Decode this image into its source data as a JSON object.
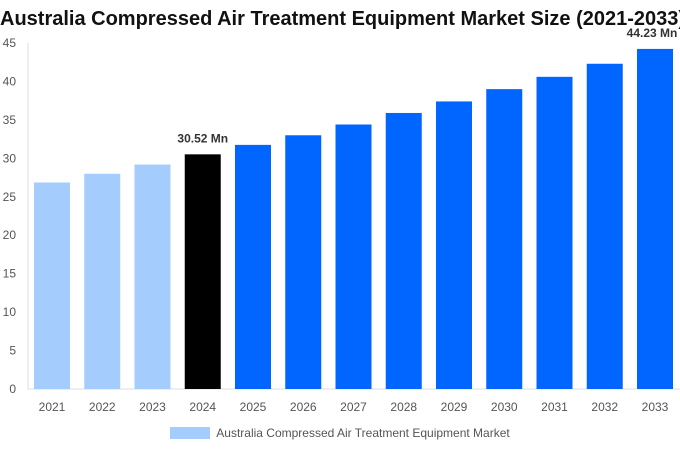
{
  "chart_data": {
    "type": "bar",
    "title": "Australia Compressed Air Treatment Equipment Market Size (2021-2033)",
    "categories": [
      "2021",
      "2022",
      "2023",
      "2024",
      "2025",
      "2026",
      "2027",
      "2028",
      "2029",
      "2030",
      "2031",
      "2032",
      "2033"
    ],
    "values": [
      26.86,
      27.99,
      29.19,
      30.52,
      31.75,
      33.0,
      34.4,
      35.9,
      37.4,
      39.0,
      40.6,
      42.3,
      44.23
    ],
    "data_labels": {
      "3": "30.52 Mn",
      "12": "44.23 Mn"
    },
    "ylim": [
      0,
      45
    ],
    "yticks": [
      0,
      5,
      10,
      15,
      20,
      25,
      30,
      35,
      40,
      45
    ],
    "xlabel": "",
    "ylabel": "",
    "grid": false,
    "legend": {
      "position": "bottom",
      "entries": [
        "Australia Compressed Air Treatment Equipment Market"
      ]
    },
    "colors": {
      "historical": "#a4cdfd",
      "base_year": "#000000",
      "forecast": "#0066ff"
    }
  }
}
